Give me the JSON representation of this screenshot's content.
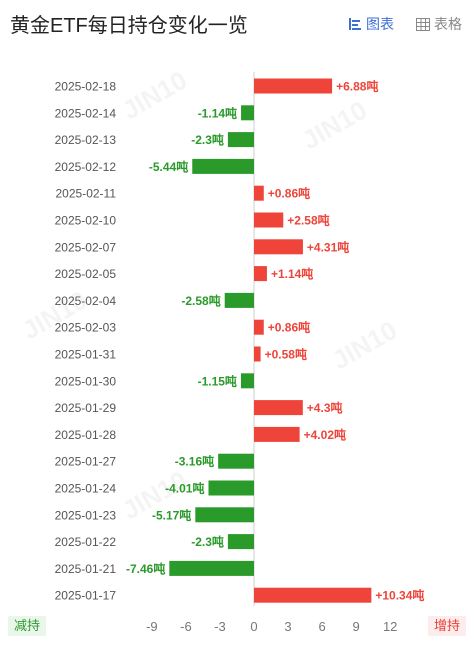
{
  "header": {
    "title": "黄金ETF每日持仓变化一览",
    "tab_chart_label": "图表",
    "tab_table_label": "表格"
  },
  "footer": {
    "decrease_label": "减持",
    "increase_label": "增持"
  },
  "colors": {
    "increase": "#ee4439",
    "decrease": "#2a9a2a",
    "accent": "#3b6fd8"
  },
  "chart_data": {
    "type": "bar",
    "orientation": "horizontal",
    "unit": "吨",
    "categories": [
      "2025-02-18",
      "2025-02-14",
      "2025-02-13",
      "2025-02-12",
      "2025-02-11",
      "2025-02-10",
      "2025-02-07",
      "2025-02-05",
      "2025-02-04",
      "2025-02-03",
      "2025-01-31",
      "2025-01-30",
      "2025-01-29",
      "2025-01-28",
      "2025-01-27",
      "2025-01-24",
      "2025-01-23",
      "2025-01-22",
      "2025-01-21",
      "2025-01-17"
    ],
    "values": [
      6.88,
      -1.14,
      -2.3,
      -5.44,
      0.86,
      2.58,
      4.31,
      1.14,
      -2.58,
      0.86,
      0.58,
      -1.15,
      4.3,
      4.02,
      -3.16,
      -4.01,
      -5.17,
      -2.3,
      -7.46,
      10.34
    ],
    "labels": [
      "+6.88吨",
      "-1.14吨",
      "-2.3吨",
      "-5.44吨",
      "+0.86吨",
      "+2.58吨",
      "+4.31吨",
      "+1.14吨",
      "-2.58吨",
      "+0.86吨",
      "+0.58吨",
      "-1.15吨",
      "+4.3吨",
      "+4.02吨",
      "-3.16吨",
      "-4.01吨",
      "-5.17吨",
      "-2.3吨",
      "-7.46吨",
      "+10.34吨"
    ],
    "xticks": [
      -9,
      -6,
      -3,
      0,
      3,
      6,
      9,
      12
    ],
    "xlim": [
      -9.2,
      12.5
    ],
    "grid": false
  }
}
